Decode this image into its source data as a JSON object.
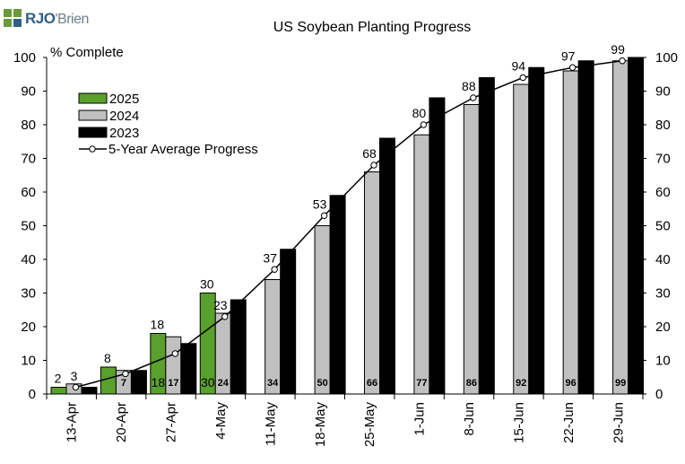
{
  "logo": {
    "brand": "RJO",
    "suffix": "'Brien"
  },
  "chart_data": {
    "type": "bar",
    "title": "US Soybean Planting Progress",
    "ylabel": "% Complete",
    "ylim": [
      0,
      100
    ],
    "yticks": [
      0,
      10,
      20,
      30,
      40,
      50,
      60,
      70,
      80,
      90,
      100
    ],
    "categories": [
      "13-Apr",
      "20-Apr",
      "27-Apr",
      "4-May",
      "11-May",
      "18-May",
      "25-May",
      "1-Jun",
      "8-Jun",
      "15-Jun",
      "22-Jun",
      "29-Jun"
    ],
    "series": [
      {
        "name": "2025",
        "kind": "bar",
        "color": "#5aa02c",
        "values": [
          2,
          8,
          18,
          30,
          null,
          null,
          null,
          null,
          null,
          null,
          null,
          null
        ]
      },
      {
        "name": "2024",
        "kind": "bar",
        "color": "#c0c0c0",
        "values": [
          3,
          7,
          17,
          24,
          34,
          50,
          66,
          77,
          86,
          92,
          96,
          99
        ]
      },
      {
        "name": "2023",
        "kind": "bar",
        "color": "#000000",
        "values": [
          2,
          7,
          15,
          28,
          43,
          59,
          76,
          88,
          94,
          97,
          99,
          100
        ]
      },
      {
        "name": "5-Year Average Progress",
        "kind": "line",
        "color": "#000000",
        "values": [
          2,
          6,
          12,
          23,
          37,
          53,
          68,
          80,
          88,
          94,
          97,
          99
        ]
      }
    ],
    "legend_position": "top-left",
    "grid": false,
    "secondary_y_axis": true
  }
}
